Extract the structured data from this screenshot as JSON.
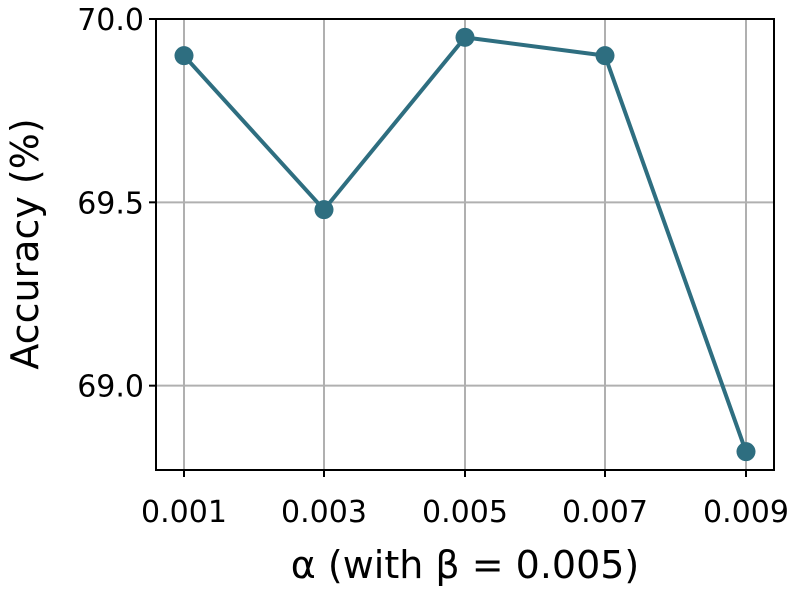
{
  "chart_data": {
    "type": "line",
    "x": [
      "0.001",
      "0.003",
      "0.005",
      "0.007",
      "0.009"
    ],
    "series": [
      {
        "values": [
          69.9,
          69.48,
          69.95,
          69.9,
          68.82
        ]
      }
    ],
    "yticks": [
      "69.0",
      "69.5",
      "70.0"
    ],
    "xlabel": "α (with β = 0.005)",
    "ylabel": "Accuracy (%)",
    "ylim": [
      68.77,
      70.0
    ],
    "grid": true,
    "color": "#2e6e80"
  }
}
